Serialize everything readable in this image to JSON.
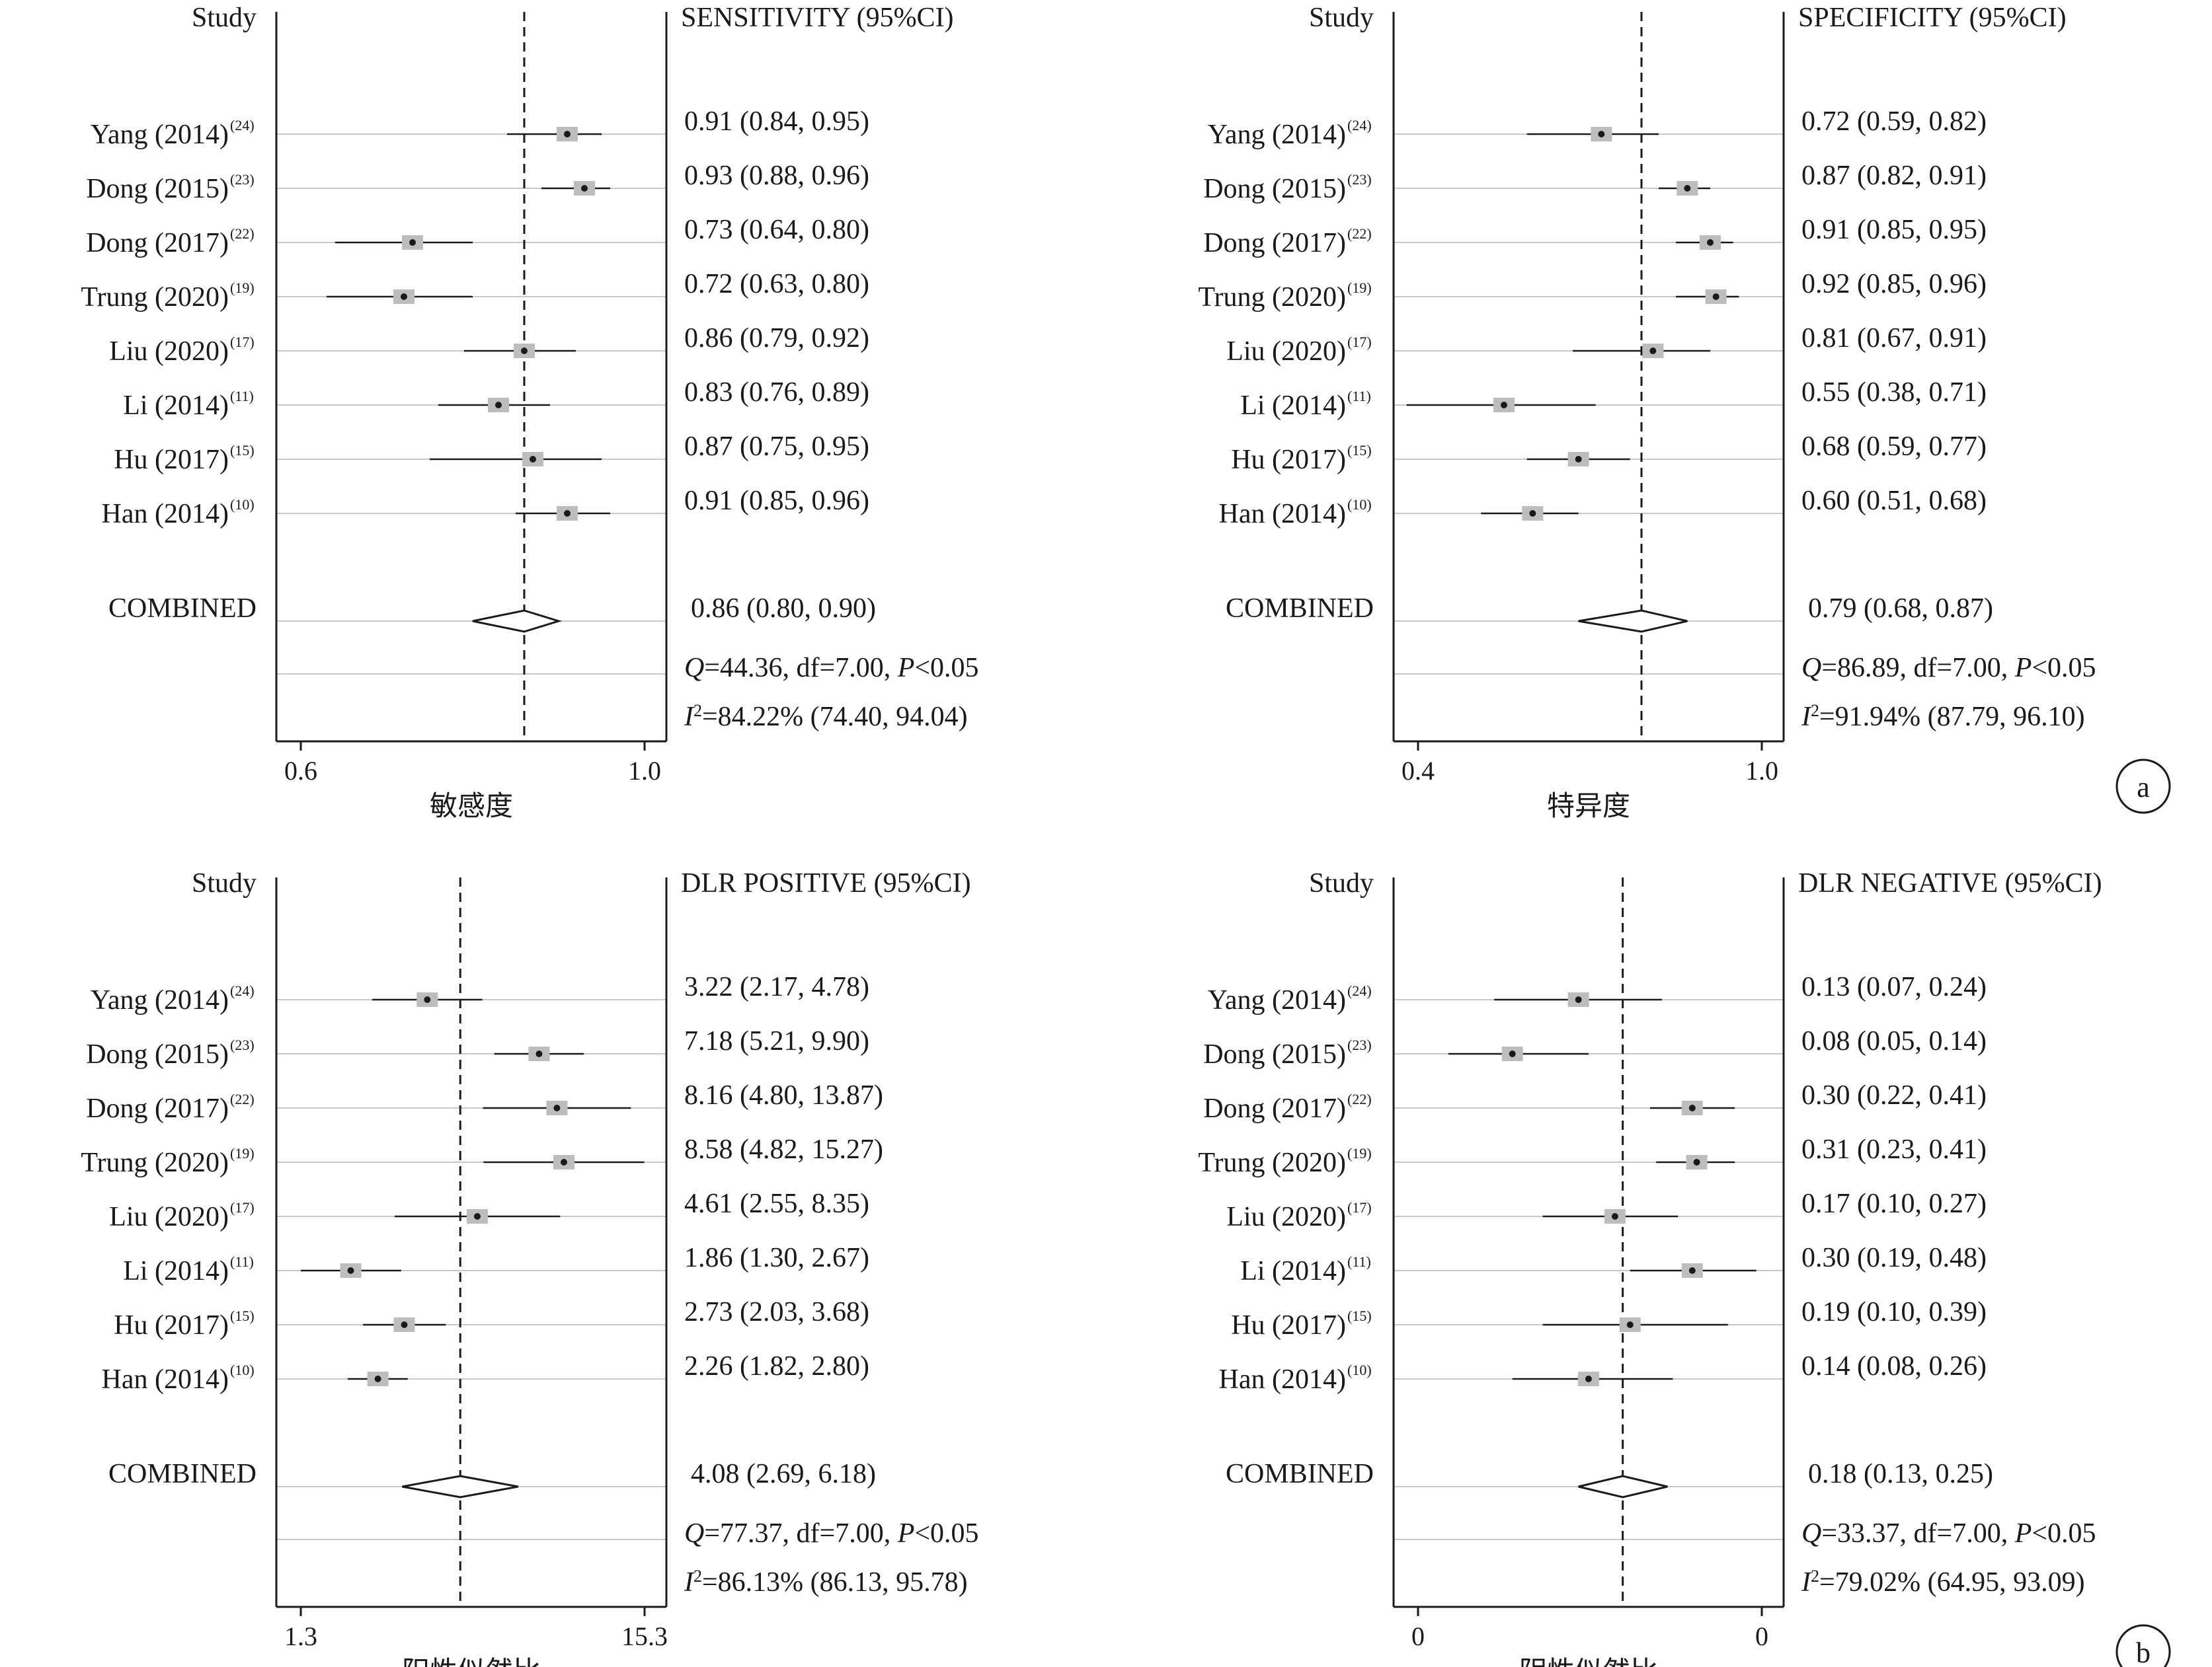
{
  "chart_data": [
    {
      "type": "forest",
      "study_header": "Study",
      "estimate_header": "SENSITIVITY (95%CI)",
      "xlabel": "敏感度",
      "xlim": [
        0.6,
        1.0
      ],
      "x_tick_labels": [
        "0.6",
        "1.0"
      ],
      "reference_line": 0.86,
      "studies": [
        {
          "name": "Yang (2014)",
          "ref": "(24)",
          "value": 0.91,
          "lower": 0.84,
          "upper": 0.95,
          "label": "0.91 (0.84, 0.95)"
        },
        {
          "name": "Dong (2015)",
          "ref": "(23)",
          "value": 0.93,
          "lower": 0.88,
          "upper": 0.96,
          "label": "0.93 (0.88, 0.96)"
        },
        {
          "name": "Dong (2017)",
          "ref": "(22)",
          "value": 0.73,
          "lower": 0.64,
          "upper": 0.8,
          "label": "0.73 (0.64, 0.80)"
        },
        {
          "name": "Trung (2020)",
          "ref": "(19)",
          "value": 0.72,
          "lower": 0.63,
          "upper": 0.8,
          "label": "0.72 (0.63, 0.80)"
        },
        {
          "name": "Liu (2020)",
          "ref": "(17)",
          "value": 0.86,
          "lower": 0.79,
          "upper": 0.92,
          "label": "0.86 (0.79, 0.92)"
        },
        {
          "name": "Li (2014)",
          "ref": "(11)",
          "value": 0.83,
          "lower": 0.76,
          "upper": 0.89,
          "label": "0.83 (0.76, 0.89)"
        },
        {
          "name": "Hu (2017)",
          "ref": "(15)",
          "value": 0.87,
          "lower": 0.75,
          "upper": 0.95,
          "label": "0.87 (0.75, 0.95)"
        },
        {
          "name": "Han (2014)",
          "ref": "(10)",
          "value": 0.91,
          "lower": 0.85,
          "upper": 0.96,
          "label": "0.91 (0.85, 0.96)"
        }
      ],
      "combined": {
        "name": "COMBINED",
        "value": 0.86,
        "lower": 0.8,
        "upper": 0.9,
        "label": "0.86 (0.80, 0.90)"
      },
      "q_stat": {
        "symbol": "Q",
        "text": "=44.36, df=7.00, ",
        "p_symbol": "P",
        "p_text": "<0.05"
      },
      "i2_stat": {
        "symbol": "I",
        "sup": "2",
        "text": "=84.22% (74.40, 94.04)"
      }
    },
    {
      "type": "forest",
      "study_header": "Study",
      "estimate_header": "SPECIFICITY (95%CI)",
      "xlabel": "特异度",
      "xlim": [
        0.4,
        1.0
      ],
      "x_tick_labels": [
        "0.4",
        "1.0"
      ],
      "reference_line": 0.79,
      "studies": [
        {
          "name": "Yang (2014)",
          "ref": "(24)",
          "value": 0.72,
          "lower": 0.59,
          "upper": 0.82,
          "label": "0.72 (0.59, 0.82)"
        },
        {
          "name": "Dong (2015)",
          "ref": "(23)",
          "value": 0.87,
          "lower": 0.82,
          "upper": 0.91,
          "label": "0.87 (0.82, 0.91)"
        },
        {
          "name": "Dong (2017)",
          "ref": "(22)",
          "value": 0.91,
          "lower": 0.85,
          "upper": 0.95,
          "label": "0.91 (0.85, 0.95)"
        },
        {
          "name": "Trung (2020)",
          "ref": "(19)",
          "value": 0.92,
          "lower": 0.85,
          "upper": 0.96,
          "label": "0.92 (0.85, 0.96)"
        },
        {
          "name": "Liu (2020)",
          "ref": "(17)",
          "value": 0.81,
          "lower": 0.67,
          "upper": 0.91,
          "label": "0.81 (0.67, 0.91)"
        },
        {
          "name": "Li (2014)",
          "ref": "(11)",
          "value": 0.55,
          "lower": 0.38,
          "upper": 0.71,
          "label": "0.55 (0.38, 0.71)"
        },
        {
          "name": "Hu (2017)",
          "ref": "(15)",
          "value": 0.68,
          "lower": 0.59,
          "upper": 0.77,
          "label": "0.68 (0.59, 0.77)"
        },
        {
          "name": "Han (2014)",
          "ref": "(10)",
          "value": 0.6,
          "lower": 0.51,
          "upper": 0.68,
          "label": "0.60 (0.51, 0.68)"
        }
      ],
      "combined": {
        "name": "COMBINED",
        "value": 0.79,
        "lower": 0.68,
        "upper": 0.87,
        "label": "0.79 (0.68, 0.87)"
      },
      "q_stat": {
        "symbol": "Q",
        "text": "=86.89, df=7.00, ",
        "p_symbol": "P",
        "p_text": "<0.05"
      },
      "i2_stat": {
        "symbol": "I",
        "sup": "2",
        "text": "=91.94% (87.79, 96.10)"
      },
      "panel_label": "a"
    },
    {
      "type": "forest",
      "study_header": "Study",
      "estimate_header": "DLR POSITIVE (95%CI)",
      "xlabel": "阳性似然比",
      "xlim": [
        1.3,
        15.3
      ],
      "x_tick_labels": [
        "1.3",
        "15.3"
      ],
      "log_scale": true,
      "reference_line": 4.08,
      "studies": [
        {
          "name": "Yang (2014)",
          "ref": "(24)",
          "value": 3.22,
          "lower": 2.17,
          "upper": 4.78,
          "label": "3.22 (2.17, 4.78)"
        },
        {
          "name": "Dong (2015)",
          "ref": "(23)",
          "value": 7.18,
          "lower": 5.21,
          "upper": 9.9,
          "label": "7.18 (5.21, 9.90)"
        },
        {
          "name": "Dong (2017)",
          "ref": "(22)",
          "value": 8.16,
          "lower": 4.8,
          "upper": 13.87,
          "label": "8.16 (4.80, 13.87)"
        },
        {
          "name": "Trung (2020)",
          "ref": "(19)",
          "value": 8.58,
          "lower": 4.82,
          "upper": 15.27,
          "label": "8.58 (4.82, 15.27)"
        },
        {
          "name": "Liu (2020)",
          "ref": "(17)",
          "value": 4.61,
          "lower": 2.55,
          "upper": 8.35,
          "label": "4.61 (2.55, 8.35)"
        },
        {
          "name": "Li (2014)",
          "ref": "(11)",
          "value": 1.86,
          "lower": 1.3,
          "upper": 2.67,
          "label": "1.86 (1.30, 2.67)"
        },
        {
          "name": "Hu (2017)",
          "ref": "(15)",
          "value": 2.73,
          "lower": 2.03,
          "upper": 3.68,
          "label": "2.73 (2.03, 3.68)"
        },
        {
          "name": "Han (2014)",
          "ref": "(10)",
          "value": 2.26,
          "lower": 1.82,
          "upper": 2.8,
          "label": "2.26 (1.82, 2.80)"
        }
      ],
      "combined": {
        "name": "COMBINED",
        "value": 4.08,
        "lower": 2.69,
        "upper": 6.18,
        "label": "4.08 (2.69, 6.18)"
      },
      "q_stat": {
        "symbol": "Q",
        "text": "=77.37, df=7.00, ",
        "p_symbol": "P",
        "p_text": "<0.05"
      },
      "i2_stat": {
        "symbol": "I",
        "sup": "2",
        "text": "=86.13% (86.13, 95.78)"
      }
    },
    {
      "type": "forest",
      "study_header": "Study",
      "estimate_header": "DLR NEGATIVE (95%CI)",
      "xlabel": "阴性似然比",
      "xlim": [
        0.04,
        0.5
      ],
      "x_tick_labels": [
        "0",
        "0"
      ],
      "log_scale": true,
      "reference_line": 0.18,
      "studies": [
        {
          "name": "Yang (2014)",
          "ref": "(24)",
          "value": 0.13,
          "lower": 0.07,
          "upper": 0.24,
          "label": "0.13 (0.07, 0.24)"
        },
        {
          "name": "Dong (2015)",
          "ref": "(23)",
          "value": 0.08,
          "lower": 0.05,
          "upper": 0.14,
          "label": "0.08 (0.05, 0.14)"
        },
        {
          "name": "Dong (2017)",
          "ref": "(22)",
          "value": 0.3,
          "lower": 0.22,
          "upper": 0.41,
          "label": "0.30 (0.22, 0.41)"
        },
        {
          "name": "Trung (2020)",
          "ref": "(19)",
          "value": 0.31,
          "lower": 0.23,
          "upper": 0.41,
          "label": "0.31 (0.23, 0.41)"
        },
        {
          "name": "Liu (2020)",
          "ref": "(17)",
          "value": 0.17,
          "lower": 0.1,
          "upper": 0.27,
          "label": "0.17 (0.10, 0.27)"
        },
        {
          "name": "Li (2014)",
          "ref": "(11)",
          "value": 0.3,
          "lower": 0.19,
          "upper": 0.48,
          "label": "0.30 (0.19, 0.48)"
        },
        {
          "name": "Hu (2017)",
          "ref": "(15)",
          "value": 0.19,
          "lower": 0.1,
          "upper": 0.39,
          "label": "0.19 (0.10, 0.39)"
        },
        {
          "name": "Han (2014)",
          "ref": "(10)",
          "value": 0.14,
          "lower": 0.08,
          "upper": 0.26,
          "label": "0.14 (0.08, 0.26)"
        }
      ],
      "combined": {
        "name": "COMBINED",
        "value": 0.18,
        "lower": 0.13,
        "upper": 0.25,
        "label": "0.18 (0.13, 0.25)"
      },
      "q_stat": {
        "symbol": "Q",
        "text": "=33.37, df=7.00, ",
        "p_symbol": "P",
        "p_text": "<0.05"
      },
      "i2_stat": {
        "symbol": "I",
        "sup": "2",
        "text": "=79.02% (64.95, 93.09)"
      },
      "panel_label": "b"
    }
  ]
}
